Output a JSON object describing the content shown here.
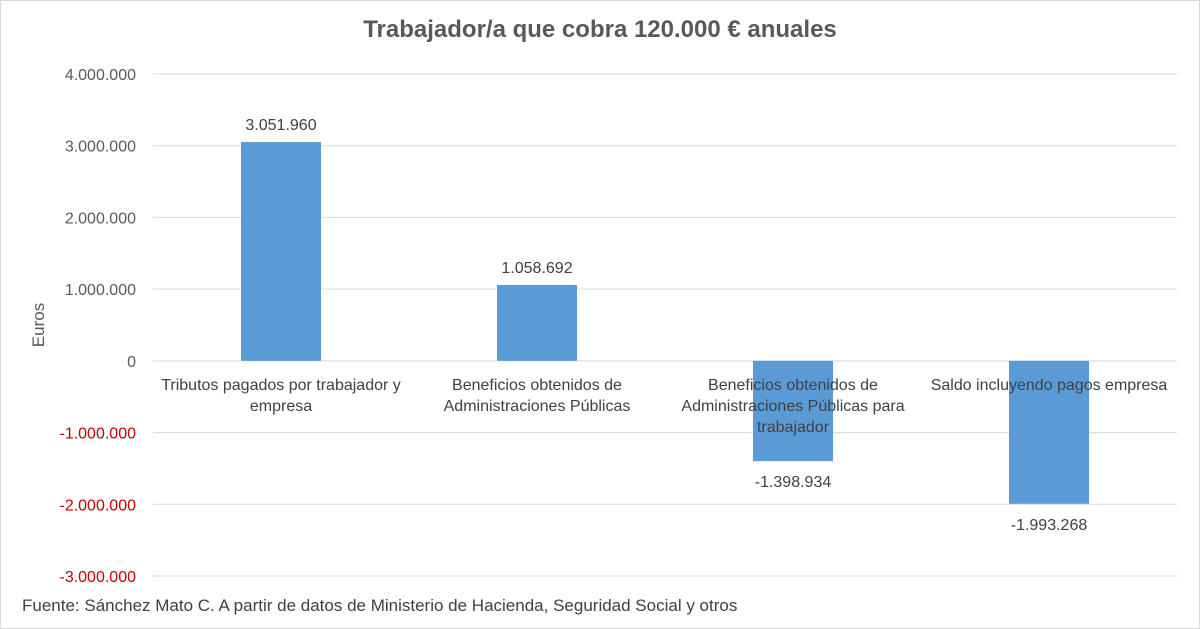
{
  "chart_data": {
    "type": "bar",
    "title": "Trabajador/a que cobra 120.000 € anuales",
    "ylabel": "Euros",
    "xlabel": "",
    "categories": [
      [
        "Tributos pagados por trabajador y",
        "empresa"
      ],
      [
        "Beneficios obtenidos de",
        "Administraciones Públicas"
      ],
      [
        "Beneficios obtenidos de",
        "Administraciones Públicas para",
        "trabajador"
      ],
      [
        "Saldo incluyendo pagos empresa"
      ]
    ],
    "values": [
      3051960,
      1058692,
      -1398934,
      -1993268
    ],
    "data_labels": [
      "3.051.960",
      "1.058.692",
      "-1.398.934",
      "-1.993.268"
    ],
    "ylim": [
      -3000000,
      4000000
    ],
    "yticks": [
      {
        "value": 4000000,
        "label": "4.000.000"
      },
      {
        "value": 3000000,
        "label": "3.000.000"
      },
      {
        "value": 2000000,
        "label": "2.000.000"
      },
      {
        "value": 1000000,
        "label": "1.000.000"
      },
      {
        "value": 0,
        "label": "0"
      },
      {
        "value": -1000000,
        "label": "-1.000.000"
      },
      {
        "value": -2000000,
        "label": "-2.000.000"
      },
      {
        "value": -3000000,
        "label": "-3.000.000"
      }
    ],
    "grid": true,
    "colors": {
      "bar": "#5b9bd5",
      "negative_tick": "#c00000",
      "tick": "#595959",
      "grid": "#d9d9d9",
      "text": "#404040"
    }
  },
  "source": "Fuente: Sánchez Mato C.  A partir de datos de Ministerio de Hacienda, Seguridad Social y otros"
}
